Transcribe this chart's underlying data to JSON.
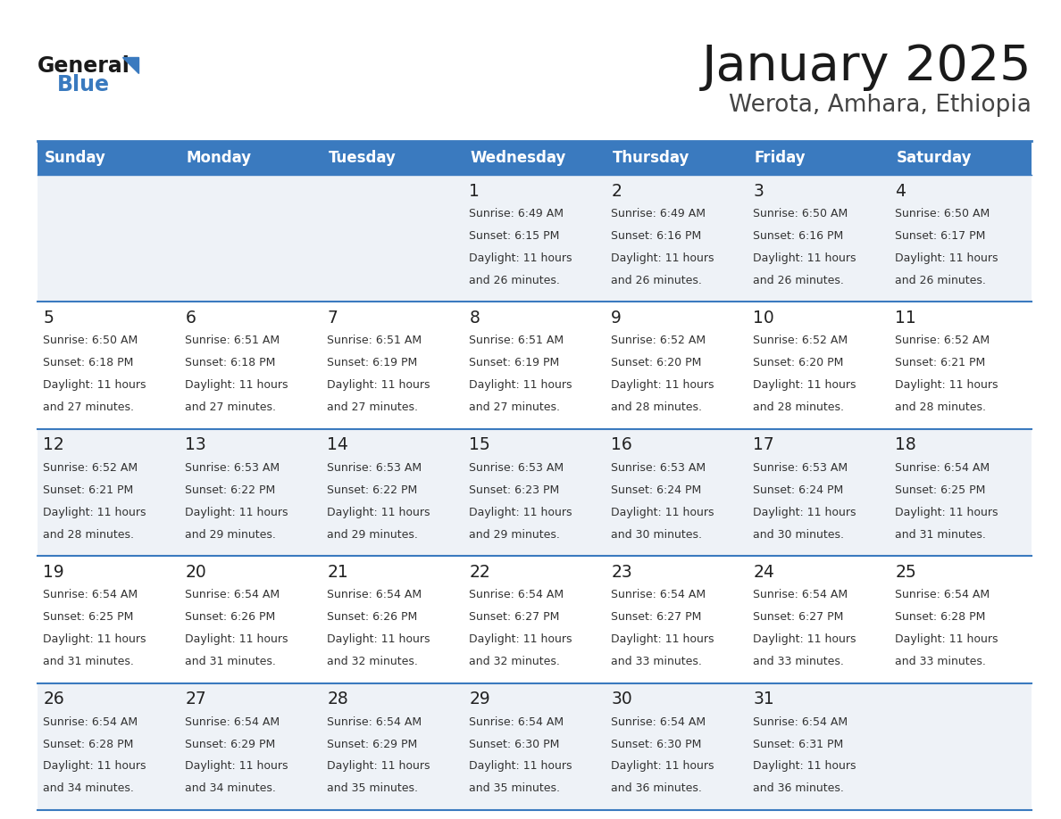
{
  "title": "January 2025",
  "subtitle": "Werota, Amhara, Ethiopia",
  "header_bg_color": "#3a7abf",
  "header_text_color": "#ffffff",
  "cell_bg_even": "#eef2f7",
  "cell_bg_odd": "#ffffff",
  "day_names": [
    "Sunday",
    "Monday",
    "Tuesday",
    "Wednesday",
    "Thursday",
    "Friday",
    "Saturday"
  ],
  "title_color": "#1a1a1a",
  "subtitle_color": "#444444",
  "day_number_color": "#222222",
  "info_color": "#333333",
  "grid_color": "#3a7abf",
  "background_color": "#ffffff",
  "logo_general_color": "#1a1a1a",
  "logo_blue_color": "#3a7abf",
  "logo_triangle_color": "#3a7abf",
  "calendar": [
    [
      null,
      null,
      null,
      {
        "day": 1,
        "sunrise": "6:49 AM",
        "sunset": "6:15 PM",
        "dl_hours": "11 hours",
        "dl_minutes": "26 minutes"
      },
      {
        "day": 2,
        "sunrise": "6:49 AM",
        "sunset": "6:16 PM",
        "dl_hours": "11 hours",
        "dl_minutes": "26 minutes"
      },
      {
        "day": 3,
        "sunrise": "6:50 AM",
        "sunset": "6:16 PM",
        "dl_hours": "11 hours",
        "dl_minutes": "26 minutes"
      },
      {
        "day": 4,
        "sunrise": "6:50 AM",
        "sunset": "6:17 PM",
        "dl_hours": "11 hours",
        "dl_minutes": "26 minutes"
      }
    ],
    [
      {
        "day": 5,
        "sunrise": "6:50 AM",
        "sunset": "6:18 PM",
        "dl_hours": "11 hours",
        "dl_minutes": "27 minutes"
      },
      {
        "day": 6,
        "sunrise": "6:51 AM",
        "sunset": "6:18 PM",
        "dl_hours": "11 hours",
        "dl_minutes": "27 minutes"
      },
      {
        "day": 7,
        "sunrise": "6:51 AM",
        "sunset": "6:19 PM",
        "dl_hours": "11 hours",
        "dl_minutes": "27 minutes"
      },
      {
        "day": 8,
        "sunrise": "6:51 AM",
        "sunset": "6:19 PM",
        "dl_hours": "11 hours",
        "dl_minutes": "27 minutes"
      },
      {
        "day": 9,
        "sunrise": "6:52 AM",
        "sunset": "6:20 PM",
        "dl_hours": "11 hours",
        "dl_minutes": "28 minutes"
      },
      {
        "day": 10,
        "sunrise": "6:52 AM",
        "sunset": "6:20 PM",
        "dl_hours": "11 hours",
        "dl_minutes": "28 minutes"
      },
      {
        "day": 11,
        "sunrise": "6:52 AM",
        "sunset": "6:21 PM",
        "dl_hours": "11 hours",
        "dl_minutes": "28 minutes"
      }
    ],
    [
      {
        "day": 12,
        "sunrise": "6:52 AM",
        "sunset": "6:21 PM",
        "dl_hours": "11 hours",
        "dl_minutes": "28 minutes"
      },
      {
        "day": 13,
        "sunrise": "6:53 AM",
        "sunset": "6:22 PM",
        "dl_hours": "11 hours",
        "dl_minutes": "29 minutes"
      },
      {
        "day": 14,
        "sunrise": "6:53 AM",
        "sunset": "6:22 PM",
        "dl_hours": "11 hours",
        "dl_minutes": "29 minutes"
      },
      {
        "day": 15,
        "sunrise": "6:53 AM",
        "sunset": "6:23 PM",
        "dl_hours": "11 hours",
        "dl_minutes": "29 minutes"
      },
      {
        "day": 16,
        "sunrise": "6:53 AM",
        "sunset": "6:24 PM",
        "dl_hours": "11 hours",
        "dl_minutes": "30 minutes"
      },
      {
        "day": 17,
        "sunrise": "6:53 AM",
        "sunset": "6:24 PM",
        "dl_hours": "11 hours",
        "dl_minutes": "30 minutes"
      },
      {
        "day": 18,
        "sunrise": "6:54 AM",
        "sunset": "6:25 PM",
        "dl_hours": "11 hours",
        "dl_minutes": "31 minutes"
      }
    ],
    [
      {
        "day": 19,
        "sunrise": "6:54 AM",
        "sunset": "6:25 PM",
        "dl_hours": "11 hours",
        "dl_minutes": "31 minutes"
      },
      {
        "day": 20,
        "sunrise": "6:54 AM",
        "sunset": "6:26 PM",
        "dl_hours": "11 hours",
        "dl_minutes": "31 minutes"
      },
      {
        "day": 21,
        "sunrise": "6:54 AM",
        "sunset": "6:26 PM",
        "dl_hours": "11 hours",
        "dl_minutes": "32 minutes"
      },
      {
        "day": 22,
        "sunrise": "6:54 AM",
        "sunset": "6:27 PM",
        "dl_hours": "11 hours",
        "dl_minutes": "32 minutes"
      },
      {
        "day": 23,
        "sunrise": "6:54 AM",
        "sunset": "6:27 PM",
        "dl_hours": "11 hours",
        "dl_minutes": "33 minutes"
      },
      {
        "day": 24,
        "sunrise": "6:54 AM",
        "sunset": "6:27 PM",
        "dl_hours": "11 hours",
        "dl_minutes": "33 minutes"
      },
      {
        "day": 25,
        "sunrise": "6:54 AM",
        "sunset": "6:28 PM",
        "dl_hours": "11 hours",
        "dl_minutes": "33 minutes"
      }
    ],
    [
      {
        "day": 26,
        "sunrise": "6:54 AM",
        "sunset": "6:28 PM",
        "dl_hours": "11 hours",
        "dl_minutes": "34 minutes"
      },
      {
        "day": 27,
        "sunrise": "6:54 AM",
        "sunset": "6:29 PM",
        "dl_hours": "11 hours",
        "dl_minutes": "34 minutes"
      },
      {
        "day": 28,
        "sunrise": "6:54 AM",
        "sunset": "6:29 PM",
        "dl_hours": "11 hours",
        "dl_minutes": "35 minutes"
      },
      {
        "day": 29,
        "sunrise": "6:54 AM",
        "sunset": "6:30 PM",
        "dl_hours": "11 hours",
        "dl_minutes": "35 minutes"
      },
      {
        "day": 30,
        "sunrise": "6:54 AM",
        "sunset": "6:30 PM",
        "dl_hours": "11 hours",
        "dl_minutes": "36 minutes"
      },
      {
        "day": 31,
        "sunrise": "6:54 AM",
        "sunset": "6:31 PM",
        "dl_hours": "11 hours",
        "dl_minutes": "36 minutes"
      },
      null
    ]
  ]
}
